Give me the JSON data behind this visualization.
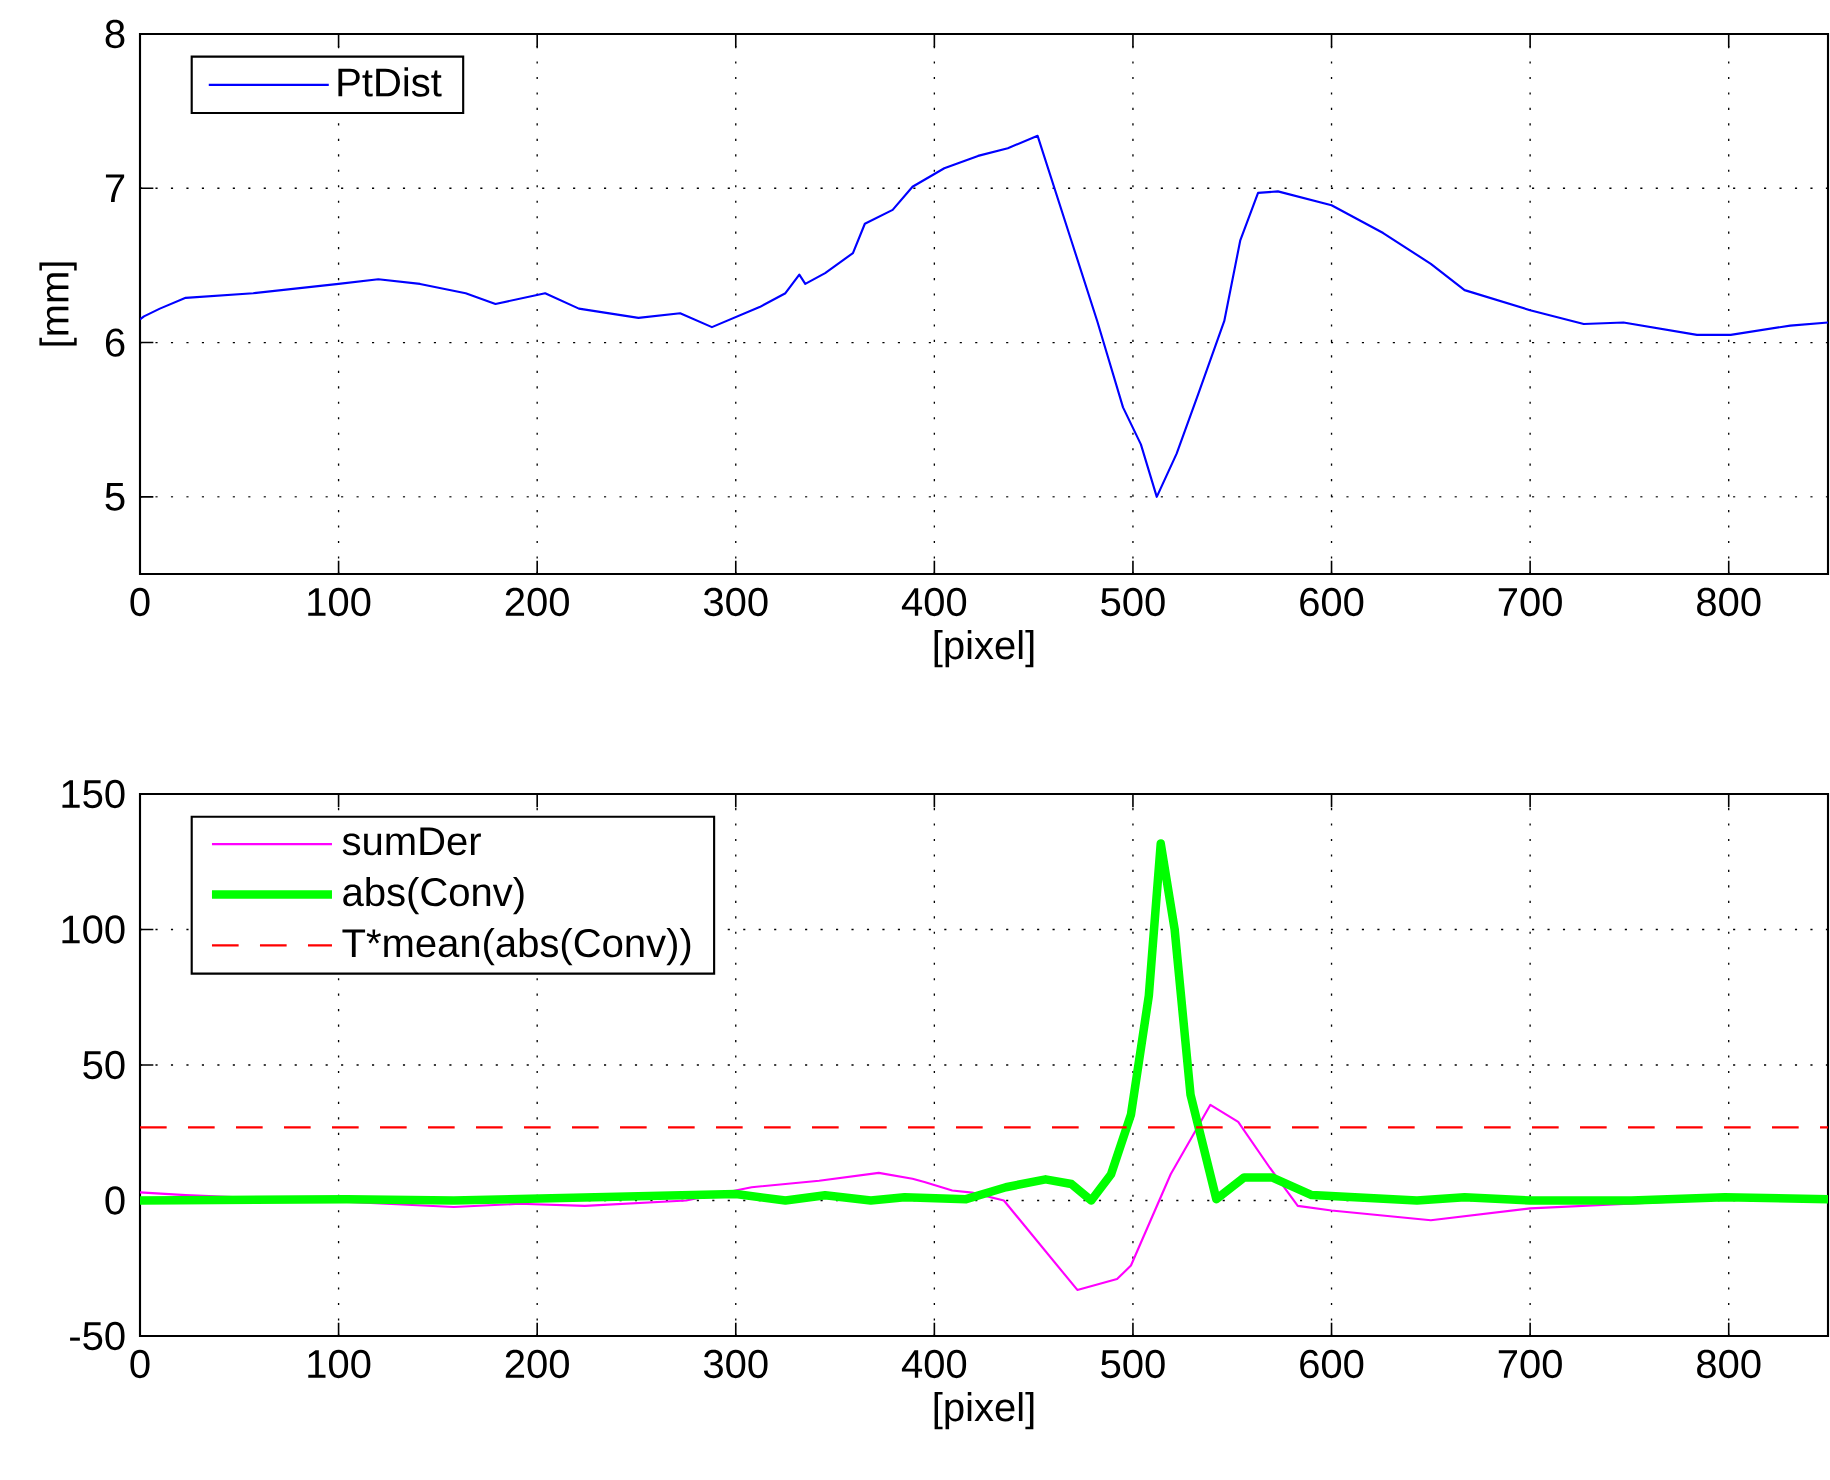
{
  "chart_data": [
    {
      "type": "line",
      "xlabel": "[pixel]",
      "ylabel": "[mm]",
      "xlim": [
        0,
        850
      ],
      "ylim": [
        4.5,
        8
      ],
      "xticks": [
        0,
        100,
        200,
        300,
        400,
        500,
        600,
        700,
        800
      ],
      "yticks": [
        5,
        6,
        7,
        8
      ],
      "grid": true,
      "legend": "top left",
      "series": [
        {
          "name": "PtDist",
          "color": "#0000ff",
          "x": [
            0,
            2,
            10,
            23,
            57,
            100,
            120,
            141,
            164,
            179,
            204,
            221,
            251,
            272,
            288,
            312,
            325,
            332,
            335,
            345,
            359,
            365,
            379,
            389,
            405,
            422,
            437,
            452,
            469,
            482,
            495,
            504,
            512,
            522,
            533,
            546,
            554,
            563,
            573,
            600,
            626,
            650,
            667,
            700,
            727,
            747,
            784,
            801,
            831,
            850
          ],
          "values": [
            6.15,
            6.17,
            6.22,
            6.29,
            6.32,
            6.38,
            6.41,
            6.38,
            6.32,
            6.25,
            6.32,
            6.22,
            6.16,
            6.19,
            6.1,
            6.23,
            6.32,
            6.44,
            6.38,
            6.45,
            6.58,
            6.77,
            6.86,
            7.01,
            7.13,
            7.21,
            7.26,
            7.34,
            6.66,
            6.14,
            5.58,
            5.34,
            5.0,
            5.28,
            5.67,
            6.14,
            6.66,
            6.97,
            6.98,
            6.89,
            6.71,
            6.51,
            6.34,
            6.21,
            6.12,
            6.13,
            6.05,
            6.05,
            6.11,
            6.13
          ]
        }
      ]
    },
    {
      "type": "line",
      "xlabel": "[pixel]",
      "xlim": [
        0,
        850
      ],
      "ylim": [
        -50,
        150
      ],
      "xticks": [
        0,
        100,
        200,
        300,
        400,
        500,
        600,
        700,
        800
      ],
      "yticks": [
        -50,
        0,
        50,
        100,
        150
      ],
      "grid": true,
      "legend": "top left",
      "series": [
        {
          "name": "sumDer",
          "color": "#ff00ff",
          "x": [
            0,
            2,
            23,
            90,
            158,
            191,
            224,
            275,
            308,
            342,
            372,
            389,
            395,
            409,
            419,
            435,
            472,
            492,
            499,
            519,
            539,
            553,
            569,
            583,
            600,
            650,
            700,
            751,
            784
          ],
          "values": [
            3,
            2.9,
            2,
            0,
            -2.4,
            -1.2,
            -2,
            0,
            4.9,
            7.3,
            10.2,
            8,
            6.8,
            3.7,
            2.9,
            0,
            -33,
            -29,
            -24,
            9.7,
            35.3,
            29,
            12,
            -2,
            -3.7,
            -7.3,
            -2.9,
            null,
            0
          ]
        },
        {
          "name": "abs(Conv)",
          "color": "#00ff00",
          "x": [
            0,
            104,
            158,
            300,
            325,
            345,
            368,
            385,
            416,
            436,
            456,
            469,
            479,
            489,
            499,
            508,
            514,
            521,
            529,
            542,
            556,
            570,
            590,
            643,
            667,
            700,
            751,
            798,
            850
          ],
          "values": [
            0,
            0.5,
            0,
            2.4,
            0,
            1.9,
            0,
            1.2,
            0.5,
            4.9,
            7.8,
            6.1,
            0,
            9.7,
            31.7,
            75.6,
            131.7,
            100,
            39,
            0.5,
            8.5,
            8.5,
            2,
            0,
            1.2,
            0,
            0,
            1.2,
            0.5
          ]
        },
        {
          "name": "T*mean(abs(Conv))",
          "color": "#ff0000",
          "line_style": "dashed",
          "x": [
            0,
            850
          ],
          "values": [
            27,
            27
          ]
        }
      ]
    }
  ]
}
